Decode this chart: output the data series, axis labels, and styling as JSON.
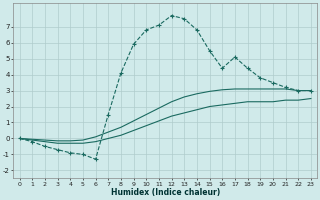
{
  "xlabel": "Humidex (Indice chaleur)",
  "background_color": "#d0eaea",
  "grid_color": "#b0cccc",
  "line_color": "#1a6a60",
  "xlim": [
    -0.5,
    23.5
  ],
  "ylim": [
    -2.5,
    8.5
  ],
  "xticks": [
    0,
    1,
    2,
    3,
    4,
    5,
    6,
    7,
    8,
    9,
    10,
    11,
    12,
    13,
    14,
    15,
    16,
    17,
    18,
    19,
    20,
    21,
    22,
    23
  ],
  "yticks": [
    -2,
    -1,
    0,
    1,
    2,
    3,
    4,
    5,
    6,
    7
  ],
  "series": [
    {
      "x": [
        0,
        1,
        2,
        3,
        4,
        5,
        6,
        7,
        8,
        9,
        10,
        11,
        12,
        13,
        14,
        15,
        16,
        17,
        18,
        19,
        20,
        21,
        22,
        23
      ],
      "y": [
        0.0,
        -0.1,
        -0.2,
        -0.3,
        -0.3,
        -0.3,
        -0.2,
        0.0,
        0.2,
        0.5,
        0.8,
        1.1,
        1.4,
        1.6,
        1.8,
        2.0,
        2.1,
        2.2,
        2.3,
        2.3,
        2.3,
        2.4,
        2.4,
        2.5
      ],
      "marker": null,
      "linestyle": "-"
    },
    {
      "x": [
        0,
        1,
        2,
        3,
        4,
        5,
        6,
        7,
        8,
        9,
        10,
        11,
        12,
        13,
        14,
        15,
        16,
        17,
        18,
        19,
        20,
        21,
        22,
        23
      ],
      "y": [
        0.0,
        -0.05,
        -0.1,
        -0.15,
        -0.15,
        -0.1,
        0.1,
        0.4,
        0.7,
        1.1,
        1.5,
        1.9,
        2.3,
        2.6,
        2.8,
        2.95,
        3.05,
        3.1,
        3.1,
        3.1,
        3.1,
        3.1,
        3.0,
        3.0
      ],
      "marker": null,
      "linestyle": "-"
    },
    {
      "x": [
        0,
        1,
        2,
        3,
        4,
        5,
        6,
        7,
        8,
        9,
        10,
        11,
        12,
        13,
        14,
        15,
        16,
        17,
        18,
        19,
        20,
        21,
        22,
        23
      ],
      "y": [
        0.0,
        -0.2,
        -0.5,
        -0.7,
        -0.9,
        -1.0,
        -1.3,
        1.5,
        4.1,
        5.9,
        6.8,
        7.1,
        7.7,
        7.5,
        6.8,
        5.5,
        4.4,
        5.1,
        4.4,
        3.8,
        3.5,
        3.2,
        3.0,
        3.0
      ],
      "marker": "+",
      "linestyle": "--"
    }
  ]
}
